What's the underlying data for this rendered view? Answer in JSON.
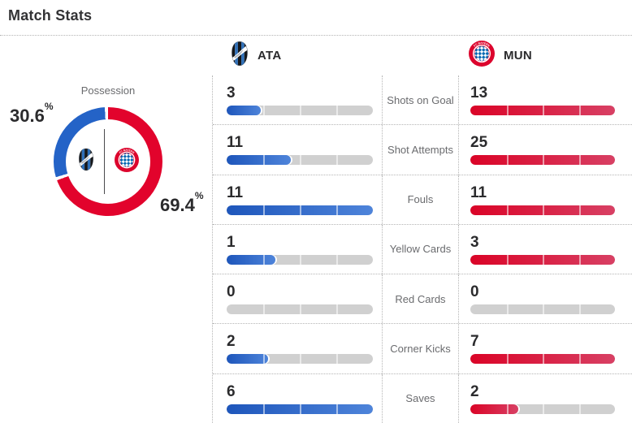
{
  "title": "Match Stats",
  "teams": {
    "home": {
      "abbr": "ATA"
    },
    "away": {
      "abbr": "MUN"
    }
  },
  "possession": {
    "label": "Possession",
    "home_pct": 30.6,
    "away_pct": 69.4,
    "home_display": "30.6",
    "away_display": "69.4",
    "percent_symbol": "%"
  },
  "stats": [
    {
      "label": "Shots on Goal",
      "home": 3,
      "away": 13
    },
    {
      "label": "Shot Attempts",
      "home": 11,
      "away": 25
    },
    {
      "label": "Fouls",
      "home": 11,
      "away": 11
    },
    {
      "label": "Yellow Cards",
      "home": 1,
      "away": 3
    },
    {
      "label": "Red Cards",
      "home": 0,
      "away": 0
    },
    {
      "label": "Corner Kicks",
      "home": 2,
      "away": 7
    },
    {
      "label": "Saves",
      "home": 6,
      "away": 2
    }
  ],
  "colors": {
    "home_bar_from": "#1e56bb",
    "home_bar_to": "#4e84da",
    "away_bar_from": "#da0427",
    "away_bar_to": "#d84064",
    "home_donut": "#2463c7",
    "away_donut": "#e2032c",
    "track": "#d0d0d0"
  },
  "chart_data": [
    {
      "type": "pie",
      "title": "Possession",
      "labels": [
        "ATA",
        "MUN"
      ],
      "values": [
        30.6,
        69.4
      ],
      "colors": [
        "#2463c7",
        "#e2032c"
      ],
      "donut": true,
      "start_angle": "12 o'clock, MUN clockwise",
      "annotations": [
        "30.6%",
        "69.4%"
      ]
    },
    {
      "type": "bar",
      "title": "Match Stats",
      "categories": [
        "Shots on Goal",
        "Shot Attempts",
        "Fouls",
        "Yellow Cards",
        "Red Cards",
        "Corner Kicks",
        "Saves"
      ],
      "series": [
        {
          "name": "ATA",
          "values": [
            3,
            11,
            11,
            1,
            0,
            2,
            6
          ],
          "color": "#1e56bb"
        },
        {
          "name": "MUN",
          "values": [
            13,
            25,
            11,
            3,
            0,
            7,
            2
          ],
          "color": "#da0427"
        }
      ],
      "layout": "horizontal paired bars, each bar normalized to the max of its pair, 4 segments per track"
    }
  ]
}
